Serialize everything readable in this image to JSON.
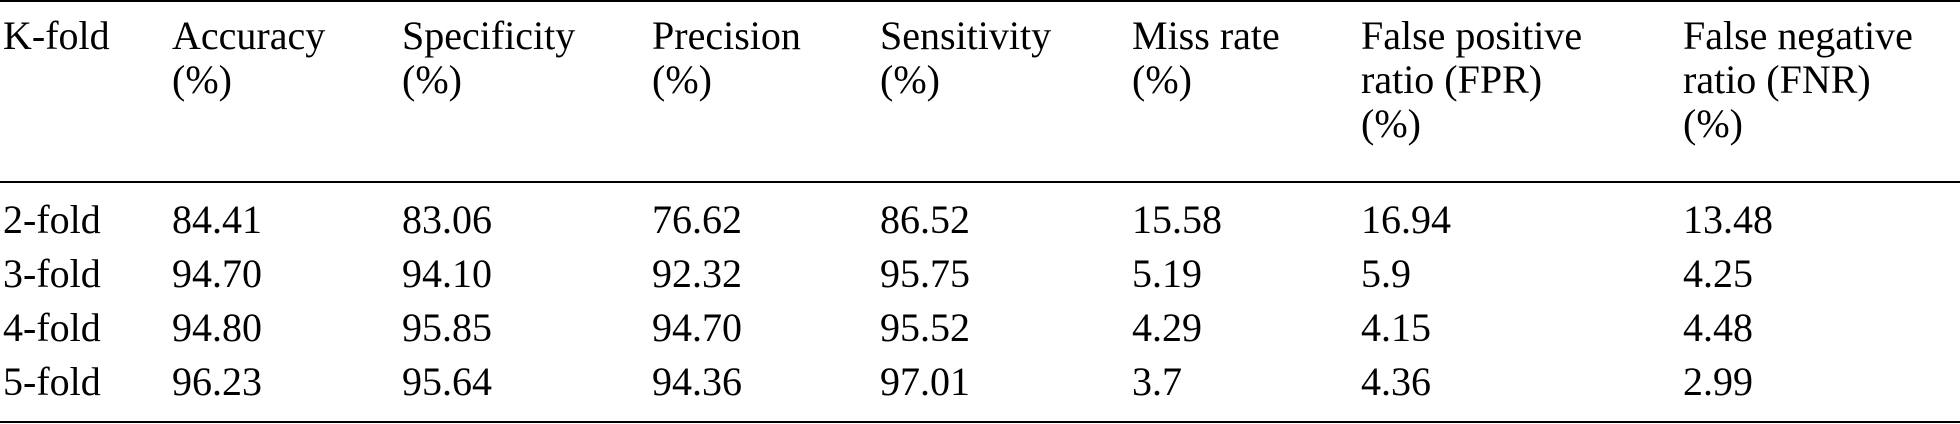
{
  "table": {
    "headers": [
      [
        "K-fold"
      ],
      [
        "Accuracy",
        "(%)"
      ],
      [
        "Specificity",
        "(%)"
      ],
      [
        "Precision",
        "(%)"
      ],
      [
        "Sensitivity",
        "(%)"
      ],
      [
        "Miss rate",
        "(%)"
      ],
      [
        "False positive",
        "ratio (FPR)",
        "(%)"
      ],
      [
        "False negative",
        "ratio (FNR)",
        "(%)"
      ]
    ],
    "rows": [
      [
        "2-fold",
        "84.41",
        "83.06",
        "76.62",
        "86.52",
        "15.58",
        "16.94",
        "13.48"
      ],
      [
        "3-fold",
        "94.70",
        "94.10",
        "92.32",
        "95.75",
        "5.19",
        "5.9",
        "4.25"
      ],
      [
        "4-fold",
        "94.80",
        "95.85",
        "94.70",
        "95.52",
        "4.29",
        "4.15",
        "4.48"
      ],
      [
        "5-fold",
        "96.23",
        "95.64",
        "94.36",
        "97.01",
        "3.7",
        "4.36",
        "2.99"
      ]
    ]
  }
}
